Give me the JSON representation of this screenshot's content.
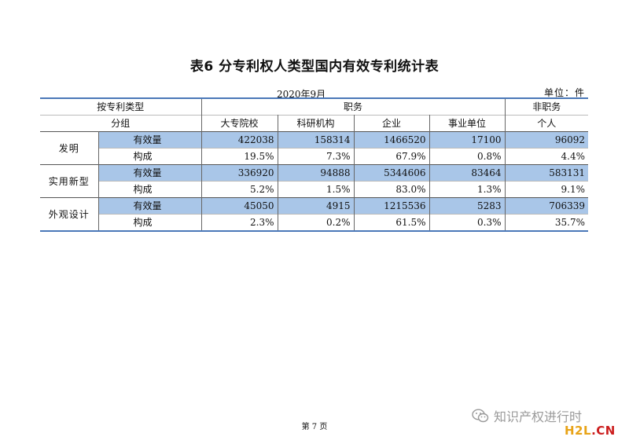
{
  "title": "表6  分专利权人类型国内有效专利统计表",
  "date": "2020年9月",
  "unit": "单位：件",
  "header": {
    "row1_col1": "按专利类型",
    "row1_duty": "职务",
    "row1_nonduty": "非职务",
    "row2_col1": "分组",
    "cols": [
      "大专院校",
      "科研机构",
      "企业",
      "事业单位",
      "个人"
    ]
  },
  "groups": [
    {
      "name": "发明",
      "rows": [
        {
          "metric": "有效量",
          "values": [
            "422038",
            "158314",
            "1466520",
            "17100",
            "96092"
          ]
        },
        {
          "metric": "构成",
          "values": [
            "19.5%",
            "7.3%",
            "67.9%",
            "0.8%",
            "4.4%"
          ]
        }
      ]
    },
    {
      "name": "实用新型",
      "rows": [
        {
          "metric": "有效量",
          "values": [
            "336920",
            "94888",
            "5344606",
            "83464",
            "583131"
          ]
        },
        {
          "metric": "构成",
          "values": [
            "5.2%",
            "1.5%",
            "83.0%",
            "1.3%",
            "9.1%"
          ]
        }
      ]
    },
    {
      "name": "外观设计",
      "rows": [
        {
          "metric": "有效量",
          "values": [
            "45050",
            "4915",
            "1215536",
            "5283",
            "706339"
          ]
        },
        {
          "metric": "构成",
          "values": [
            "2.3%",
            "0.2%",
            "61.5%",
            "0.3%",
            "35.7%"
          ]
        }
      ]
    }
  ],
  "footer": "第 7 页",
  "watermark": {
    "text": "知识产权进行时",
    "icon": "wechat-icon"
  },
  "logo": {
    "part1": "H2L",
    "part2": ".CN"
  },
  "colors": {
    "highlight": "#a9c6e8",
    "rule": "#4a78b8",
    "logo_h2l": "#e8a317",
    "logo_cn": "#cc1f1f"
  }
}
